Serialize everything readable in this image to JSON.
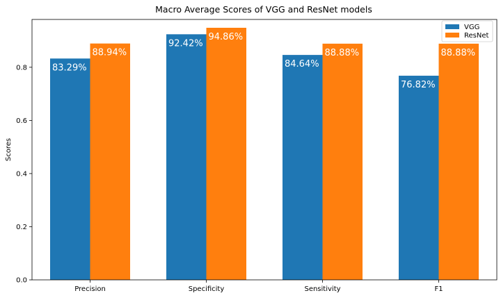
{
  "chart_data": {
    "type": "bar",
    "title": "Macro Average Scores of VGG and ResNet models",
    "xlabel": "",
    "ylabel": "Scores",
    "categories": [
      "Precision",
      "Specificity",
      "Sensitivity",
      "F1"
    ],
    "series": [
      {
        "name": "VGG",
        "color": "#1f77b4",
        "values": [
          0.8329,
          0.9242,
          0.8464,
          0.7682
        ],
        "labels": [
          "83.29%",
          "92.42%",
          "84.64%",
          "76.82%"
        ]
      },
      {
        "name": "ResNet",
        "color": "#ff7f0e",
        "values": [
          0.8894,
          0.9486,
          0.8888,
          0.8888
        ],
        "labels": [
          "88.94%",
          "94.86%",
          "88.88%",
          "88.88%"
        ]
      }
    ],
    "yticks": [
      "0.0",
      "0.2",
      "0.4",
      "0.6",
      "0.8"
    ],
    "ylim": [
      0,
      0.9486
    ],
    "grid": false,
    "legend": "top-right"
  }
}
